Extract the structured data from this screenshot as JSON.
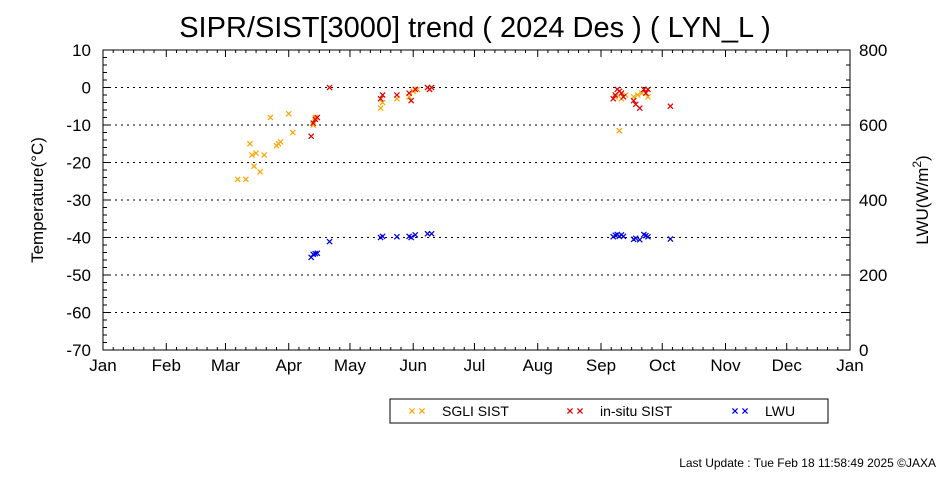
{
  "chart_data": {
    "type": "scatter",
    "title": "SIPR/SIST[3000] trend ( 2024 Des ) ( LYN_L )",
    "ylabel": "Temperature(°C)",
    "y2label_main": "LWU(W/m",
    "y2label_sup": "2",
    "y2label_end": ")",
    "ylim": [
      -70,
      10
    ],
    "y2lim": [
      0,
      800
    ],
    "yticks": [
      "10",
      "0",
      "-10",
      "-20",
      "-30",
      "-40",
      "-50",
      "-60",
      "-70"
    ],
    "y2ticks": [
      "800",
      "600",
      "400",
      "200",
      "0"
    ],
    "xticks": [
      "Jan",
      "Feb",
      "Mar",
      "Apr",
      "May",
      "Jun",
      "Jul",
      "Aug",
      "Sep",
      "Oct",
      "Nov",
      "Dec",
      "Jan"
    ],
    "grid": true,
    "legend_placement": "bottom-right",
    "series": [
      {
        "name": "SGLI SIST",
        "axis": "left",
        "color": "#ffa500",
        "points": [
          [
            "2024-03-07",
            -24.5
          ],
          [
            "2024-03-11",
            -24.5
          ],
          [
            "2024-03-13",
            -15
          ],
          [
            "2024-03-14",
            -18
          ],
          [
            "2024-03-15",
            -21
          ],
          [
            "2024-03-16",
            -17.5
          ],
          [
            "2024-03-18",
            -22.5
          ],
          [
            "2024-03-20",
            -18
          ],
          [
            "2024-03-23",
            -8
          ],
          [
            "2024-03-26",
            -15.5
          ],
          [
            "2024-03-27",
            -15
          ],
          [
            "2024-03-28",
            -14.5
          ],
          [
            "2024-04-01",
            -7
          ],
          [
            "2024-04-03",
            -12
          ],
          [
            "2024-04-13",
            -10
          ],
          [
            "2024-04-14",
            -8
          ],
          [
            "2024-05-16",
            -5.5
          ],
          [
            "2024-05-17",
            -4
          ],
          [
            "2024-05-24",
            -3
          ],
          [
            "2024-05-30",
            -2.5
          ],
          [
            "2024-06-01",
            -1
          ],
          [
            "2024-06-03",
            -0.5
          ],
          [
            "2024-06-09",
            -0.5
          ],
          [
            "2024-09-08",
            -2.5
          ],
          [
            "2024-09-10",
            -11.5
          ],
          [
            "2024-09-11",
            -3
          ],
          [
            "2024-09-13",
            -2
          ],
          [
            "2024-09-17",
            -2.5
          ],
          [
            "2024-09-19",
            -2
          ],
          [
            "2024-09-21",
            -1.5
          ],
          [
            "2024-09-24",
            -2.5
          ]
        ]
      },
      {
        "name": "in-situ SIST",
        "axis": "left",
        "color": "#e00000",
        "points": [
          [
            "2024-04-12",
            -13
          ],
          [
            "2024-04-13",
            -9.5
          ],
          [
            "2024-04-14",
            -8.5
          ],
          [
            "2024-04-15",
            -8
          ],
          [
            "2024-04-21",
            0
          ],
          [
            "2024-05-16",
            -3
          ],
          [
            "2024-05-17",
            -2
          ],
          [
            "2024-05-24",
            -2
          ],
          [
            "2024-05-30",
            -1.5
          ],
          [
            "2024-05-31",
            -3.5
          ],
          [
            "2024-06-02",
            -0.5
          ],
          [
            "2024-06-08",
            0
          ],
          [
            "2024-06-09",
            -0.5
          ],
          [
            "2024-06-10",
            0
          ],
          [
            "2024-09-07",
            -3
          ],
          [
            "2024-09-08",
            -2
          ],
          [
            "2024-09-09",
            -0.5
          ],
          [
            "2024-09-10",
            -1
          ],
          [
            "2024-09-11",
            -1.5
          ],
          [
            "2024-09-12",
            -2.5
          ],
          [
            "2024-09-17",
            -3.5
          ],
          [
            "2024-09-18",
            -4.5
          ],
          [
            "2024-09-20",
            -5.5
          ],
          [
            "2024-09-22",
            -0.5
          ],
          [
            "2024-09-23",
            -1.5
          ],
          [
            "2024-09-24",
            -0.5
          ],
          [
            "2024-10-05",
            -5
          ]
        ]
      },
      {
        "name": "LWU",
        "axis": "right",
        "color": "#0000e0",
        "points": [
          [
            "2024-04-12",
            247
          ],
          [
            "2024-04-13",
            255
          ],
          [
            "2024-04-14",
            257
          ],
          [
            "2024-04-15",
            258
          ],
          [
            "2024-04-21",
            289
          ],
          [
            "2024-05-16",
            300
          ],
          [
            "2024-05-17",
            303
          ],
          [
            "2024-05-24",
            302
          ],
          [
            "2024-05-30",
            303
          ],
          [
            "2024-05-31",
            300
          ],
          [
            "2024-06-02",
            307
          ],
          [
            "2024-06-08",
            310
          ],
          [
            "2024-06-10",
            310
          ],
          [
            "2024-09-07",
            302
          ],
          [
            "2024-09-08",
            306
          ],
          [
            "2024-09-09",
            308
          ],
          [
            "2024-09-10",
            303
          ],
          [
            "2024-09-11",
            307
          ],
          [
            "2024-09-12",
            303
          ],
          [
            "2024-09-17",
            295
          ],
          [
            "2024-09-18",
            298
          ],
          [
            "2024-09-20",
            294
          ],
          [
            "2024-09-22",
            308
          ],
          [
            "2024-09-23",
            305
          ],
          [
            "2024-09-24",
            302
          ],
          [
            "2024-10-05",
            296
          ]
        ]
      }
    ],
    "footer": "Last Update : Tue Feb 18 11:58:49 2025  ©JAXA"
  }
}
